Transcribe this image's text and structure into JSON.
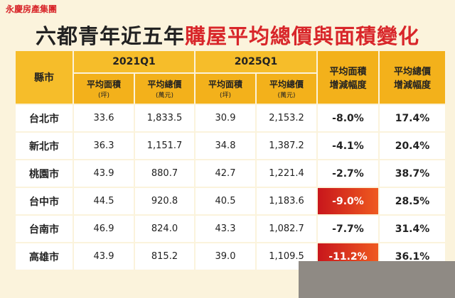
{
  "logo": "永慶房產集團",
  "title": {
    "part1": "六都青年近五年",
    "part2": "購屋平均總價與面積變化"
  },
  "table": {
    "header": {
      "city": "縣市",
      "periods": [
        {
          "label": "2021Q1",
          "columns": [
            {
              "name": "平均面積",
              "unit": "(坪)"
            },
            {
              "name": "平均總價",
              "unit": "(萬元)"
            }
          ]
        },
        {
          "label": "2025Q1",
          "columns": [
            {
              "name": "平均面積",
              "unit": "(坪)"
            },
            {
              "name": "平均總價",
              "unit": "(萬元)"
            }
          ]
        }
      ],
      "changes": [
        {
          "line1": "平均面積",
          "line2": "增減幅度"
        },
        {
          "line1": "平均總價",
          "line2": "增減幅度"
        }
      ]
    },
    "rows": [
      [
        "台北市",
        "33.6",
        "1,833.5",
        "30.9",
        "2,153.2",
        "-8.0%",
        "17.4%"
      ],
      [
        "新北市",
        "36.3",
        "1,151.7",
        "34.8",
        "1,387.2",
        "-4.1%",
        "20.4%"
      ],
      [
        "桃園市",
        "43.9",
        "880.7",
        "42.7",
        "1,221.4",
        "-2.7%",
        "38.7%"
      ],
      [
        "台中市",
        "44.5",
        "920.8",
        "40.5",
        "1,183.6",
        "-9.0%",
        "28.5%"
      ],
      [
        "台南市",
        "46.9",
        "824.0",
        "43.3",
        "1,082.7",
        "-7.7%",
        "31.4%"
      ],
      [
        "高雄市",
        "43.9",
        "815.2",
        "39.0",
        "1,109.5",
        "-11.2%",
        "36.1%"
      ]
    ]
  }
}
